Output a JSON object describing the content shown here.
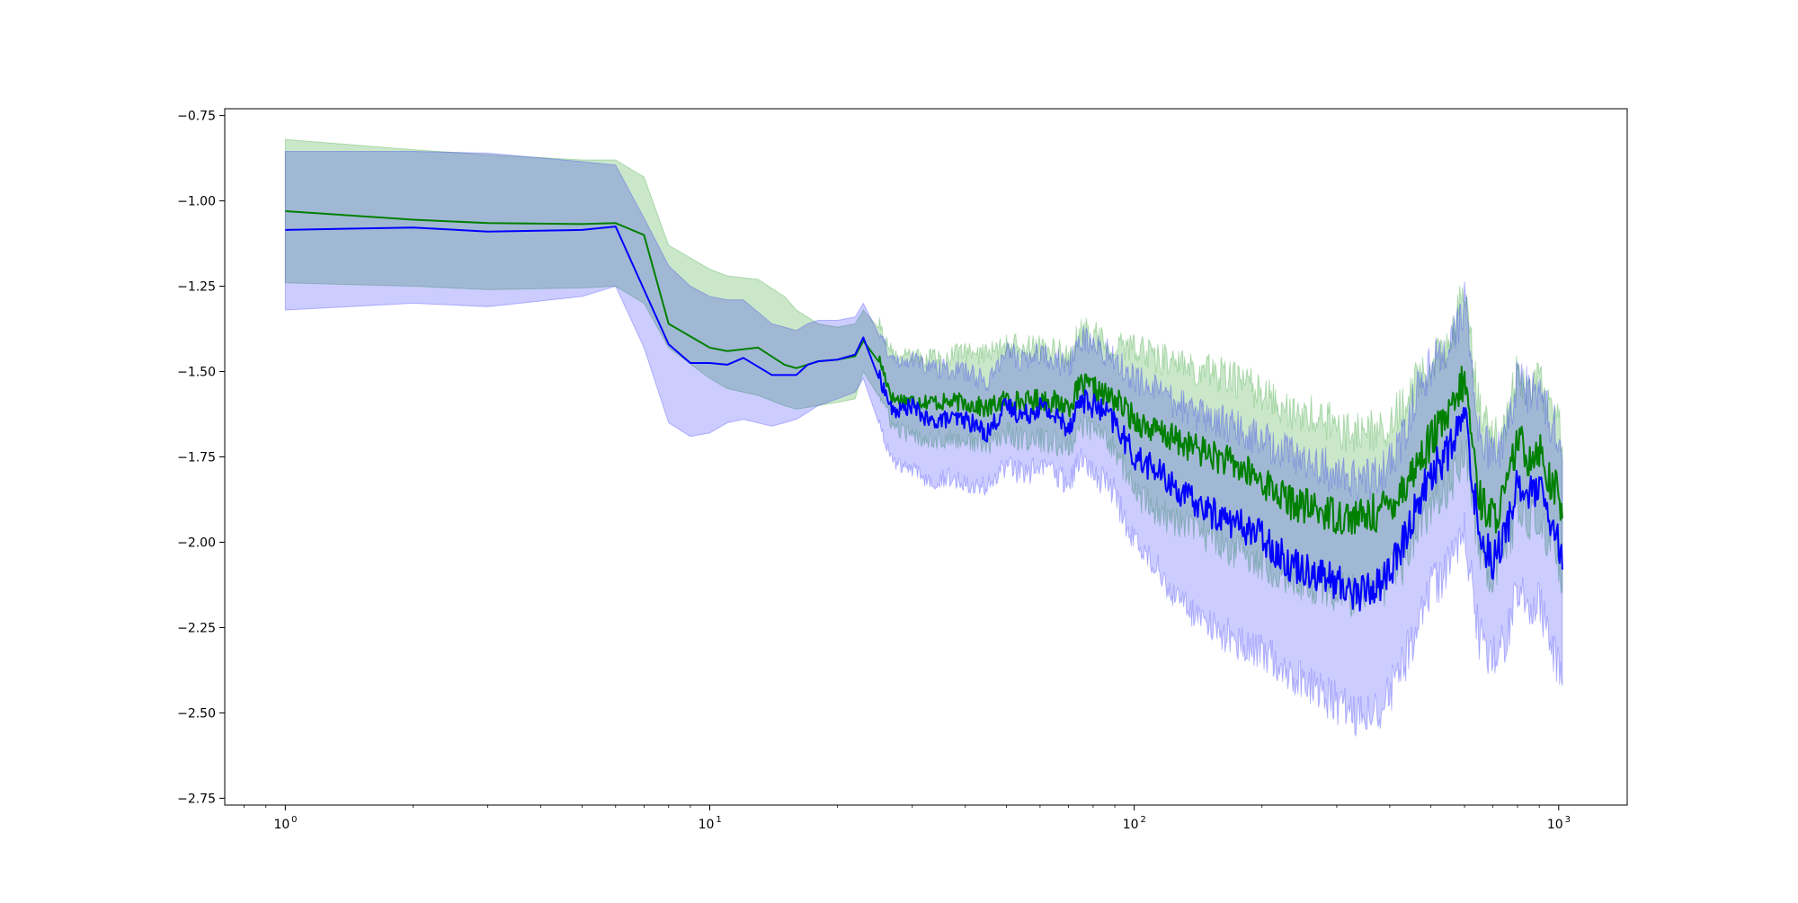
{
  "chart_data": {
    "type": "line",
    "title": "",
    "xlabel": "",
    "ylabel": "",
    "x_scale": "log",
    "xlim": [
      0.72,
      1450
    ],
    "ylim": [
      -2.77,
      -0.73
    ],
    "grid": false,
    "legend": "none",
    "x_ticks": [
      {
        "value": 1,
        "label": "10",
        "exp": "0"
      },
      {
        "value": 10,
        "label": "10",
        "exp": "1"
      },
      {
        "value": 100,
        "label": "10",
        "exp": "2"
      },
      {
        "value": 1000,
        "label": "10",
        "exp": "3"
      }
    ],
    "y_ticks": [
      {
        "value": -0.75,
        "label": "−0.75"
      },
      {
        "value": -1.0,
        "label": "−1.00"
      },
      {
        "value": -1.25,
        "label": "−1.25"
      },
      {
        "value": -1.5,
        "label": "−1.50"
      },
      {
        "value": -1.75,
        "label": "−1.75"
      },
      {
        "value": -2.0,
        "label": "−2.00"
      },
      {
        "value": -2.25,
        "label": "−2.25"
      },
      {
        "value": -2.5,
        "label": "−2.50"
      },
      {
        "value": -2.75,
        "label": "−2.75"
      }
    ],
    "series": [
      {
        "color": "#008000",
        "band_color": "#2ca02c",
        "band_opacity": 0.25,
        "x": [
          1,
          2,
          3,
          5,
          6,
          7,
          8,
          10,
          11,
          13,
          15,
          16,
          18,
          20,
          22,
          23,
          25,
          27,
          30,
          35,
          40,
          45,
          50,
          55,
          60,
          70,
          75,
          80,
          85,
          90,
          100,
          110,
          120,
          130,
          150,
          170,
          200,
          230,
          260,
          300,
          340,
          380,
          420,
          460,
          500,
          560,
          600,
          650,
          700,
          750,
          800,
          850,
          900,
          950,
          1000,
          1020
        ],
        "values": [
          -1.03,
          -1.055,
          -1.065,
          -1.068,
          -1.065,
          -1.1,
          -1.36,
          -1.43,
          -1.44,
          -1.43,
          -1.48,
          -1.49,
          -1.47,
          -1.465,
          -1.455,
          -1.41,
          -1.46,
          -1.58,
          -1.585,
          -1.59,
          -1.59,
          -1.61,
          -1.58,
          -1.59,
          -1.58,
          -1.6,
          -1.54,
          -1.55,
          -1.57,
          -1.58,
          -1.64,
          -1.67,
          -1.69,
          -1.71,
          -1.74,
          -1.77,
          -1.82,
          -1.88,
          -1.9,
          -1.92,
          -1.93,
          -1.91,
          -1.86,
          -1.78,
          -1.7,
          -1.62,
          -1.52,
          -1.87,
          -1.93,
          -1.86,
          -1.7,
          -1.75,
          -1.72,
          -1.82,
          -1.86,
          -1.93
        ],
        "lower": [
          -1.24,
          -1.25,
          -1.26,
          -1.255,
          -1.25,
          -1.3,
          -1.43,
          -1.52,
          -1.55,
          -1.57,
          -1.6,
          -1.61,
          -1.6,
          -1.59,
          -1.58,
          -1.5,
          -1.56,
          -1.66,
          -1.69,
          -1.7,
          -1.7,
          -1.72,
          -1.68,
          -1.7,
          -1.7,
          -1.72,
          -1.66,
          -1.67,
          -1.69,
          -1.72,
          -1.85,
          -1.9,
          -1.93,
          -1.95,
          -1.98,
          -2.02,
          -2.06,
          -2.1,
          -2.12,
          -2.15,
          -2.16,
          -2.14,
          -2.08,
          -1.98,
          -1.9,
          -1.82,
          -1.72,
          -2.03,
          -2.1,
          -2.02,
          -1.9,
          -1.95,
          -1.92,
          -2.01,
          -2.05,
          -2.14
        ],
        "upper": [
          -0.82,
          -0.85,
          -0.865,
          -0.88,
          -0.88,
          -0.93,
          -1.13,
          -1.2,
          -1.22,
          -1.23,
          -1.28,
          -1.32,
          -1.36,
          -1.37,
          -1.36,
          -1.32,
          -1.36,
          -1.45,
          -1.46,
          -1.46,
          -1.44,
          -1.45,
          -1.42,
          -1.43,
          -1.43,
          -1.45,
          -1.38,
          -1.39,
          -1.42,
          -1.43,
          -1.43,
          -1.45,
          -1.47,
          -1.48,
          -1.5,
          -1.52,
          -1.56,
          -1.62,
          -1.63,
          -1.66,
          -1.69,
          -1.67,
          -1.62,
          -1.54,
          -1.48,
          -1.4,
          -1.26,
          -1.62,
          -1.7,
          -1.64,
          -1.5,
          -1.55,
          -1.52,
          -1.62,
          -1.64,
          -1.72
        ]
      },
      {
        "color": "#0000ff",
        "band_color": "#0000ff",
        "band_opacity": 0.2,
        "x": [
          1,
          2,
          3,
          5,
          6,
          7,
          8,
          9,
          10,
          11,
          12,
          14,
          15,
          16,
          17,
          18,
          20,
          22,
          23,
          25,
          27,
          30,
          33,
          35,
          40,
          45,
          50,
          55,
          60,
          70,
          75,
          80,
          85,
          90,
          100,
          110,
          120,
          130,
          150,
          170,
          200,
          230,
          260,
          300,
          340,
          380,
          420,
          460,
          500,
          560,
          600,
          650,
          700,
          750,
          800,
          850,
          900,
          950,
          1000,
          1020
        ],
        "values": [
          -1.085,
          -1.078,
          -1.09,
          -1.085,
          -1.075,
          -1.26,
          -1.42,
          -1.475,
          -1.475,
          -1.48,
          -1.46,
          -1.51,
          -1.51,
          -1.51,
          -1.48,
          -1.47,
          -1.465,
          -1.45,
          -1.4,
          -1.51,
          -1.62,
          -1.6,
          -1.65,
          -1.64,
          -1.64,
          -1.68,
          -1.6,
          -1.63,
          -1.6,
          -1.66,
          -1.58,
          -1.6,
          -1.62,
          -1.65,
          -1.75,
          -1.78,
          -1.82,
          -1.86,
          -1.91,
          -1.94,
          -1.98,
          -2.06,
          -2.08,
          -2.12,
          -2.15,
          -2.12,
          -2.04,
          -1.9,
          -1.8,
          -1.72,
          -1.62,
          -1.98,
          -2.05,
          -1.98,
          -1.82,
          -1.87,
          -1.84,
          -1.95,
          -2.0,
          -2.08
        ],
        "lower": [
          -1.32,
          -1.3,
          -1.31,
          -1.28,
          -1.25,
          -1.43,
          -1.65,
          -1.69,
          -1.68,
          -1.65,
          -1.64,
          -1.66,
          -1.65,
          -1.64,
          -1.62,
          -1.6,
          -1.58,
          -1.56,
          -1.52,
          -1.64,
          -1.77,
          -1.79,
          -1.82,
          -1.81,
          -1.82,
          -1.84,
          -1.78,
          -1.8,
          -1.78,
          -1.82,
          -1.76,
          -1.8,
          -1.82,
          -1.86,
          -2.0,
          -2.06,
          -2.12,
          -2.18,
          -2.24,
          -2.28,
          -2.32,
          -2.38,
          -2.42,
          -2.47,
          -2.52,
          -2.48,
          -2.4,
          -2.26,
          -2.14,
          -2.06,
          -1.96,
          -2.28,
          -2.34,
          -2.28,
          -2.14,
          -2.2,
          -2.17,
          -2.3,
          -2.36,
          -2.42
        ],
        "upper": [
          -0.855,
          -0.855,
          -0.86,
          -0.885,
          -0.895,
          -1.05,
          -1.19,
          -1.25,
          -1.28,
          -1.29,
          -1.29,
          -1.36,
          -1.37,
          -1.38,
          -1.36,
          -1.35,
          -1.35,
          -1.34,
          -1.3,
          -1.38,
          -1.47,
          -1.46,
          -1.49,
          -1.49,
          -1.5,
          -1.53,
          -1.44,
          -1.47,
          -1.44,
          -1.49,
          -1.4,
          -1.42,
          -1.44,
          -1.46,
          -1.52,
          -1.55,
          -1.58,
          -1.6,
          -1.64,
          -1.66,
          -1.7,
          -1.74,
          -1.76,
          -1.8,
          -1.82,
          -1.8,
          -1.72,
          -1.58,
          -1.48,
          -1.4,
          -1.3,
          -1.68,
          -1.76,
          -1.7,
          -1.52,
          -1.56,
          -1.54,
          -1.64,
          -1.68,
          -1.76
        ]
      }
    ]
  }
}
